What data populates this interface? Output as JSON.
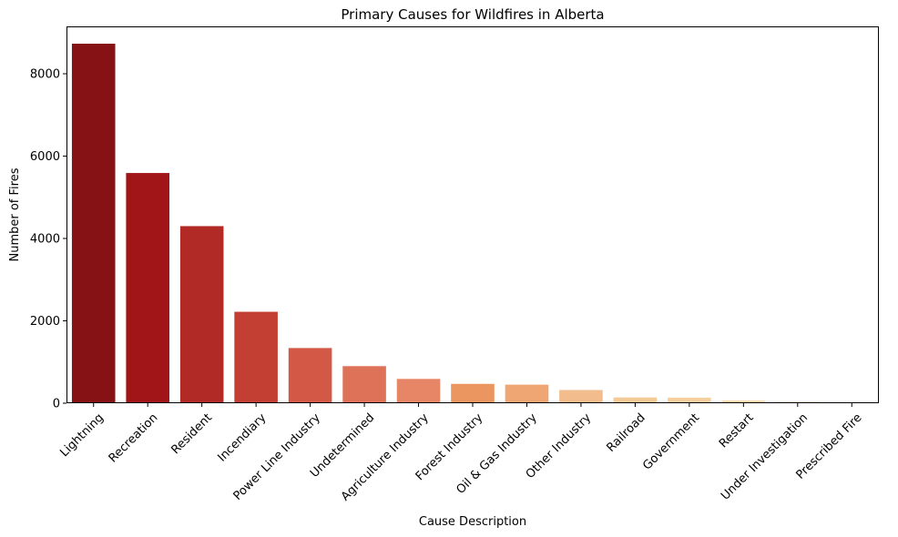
{
  "chart_data": {
    "type": "bar",
    "title": "Primary Causes for Wildfires in Alberta",
    "xlabel": "Cause Description",
    "ylabel": "Number of Fires",
    "ylim": [
      0,
      9150
    ],
    "yticks": [
      0,
      2000,
      4000,
      6000,
      8000
    ],
    "ytick_labels": [
      "0",
      "2000",
      "4000",
      "6000",
      "8000"
    ],
    "grid": false,
    "categories": [
      "Lightning",
      "Recreation",
      "Resident",
      "Incendiary",
      "Power Line Industry",
      "Undetermined",
      "Agriculture Industry",
      "Forest Industry",
      "Oil & Gas Industry",
      "Other Industry",
      "Railroad",
      "Government",
      "Restart",
      "Under Investigation",
      "Prescribed Fire"
    ],
    "values": [
      8730,
      5590,
      4300,
      2220,
      1340,
      900,
      590,
      470,
      450,
      320,
      140,
      135,
      65,
      35,
      5
    ],
    "colors": [
      "#861215",
      "#a11418",
      "#b12a26",
      "#c43f33",
      "#d35846",
      "#de7259",
      "#e68666",
      "#eb9561",
      "#efa673",
      "#f2bc8c",
      "#f4cb98",
      "#f5d09e",
      "#f7d8a8",
      "#f8dfb0",
      "#fae4b8"
    ]
  }
}
